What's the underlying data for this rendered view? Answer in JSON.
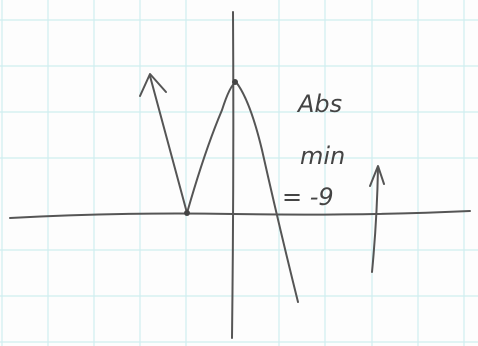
{
  "annotation": {
    "lines": [
      "Abs",
      "min",
      "= -9"
    ]
  }
}
